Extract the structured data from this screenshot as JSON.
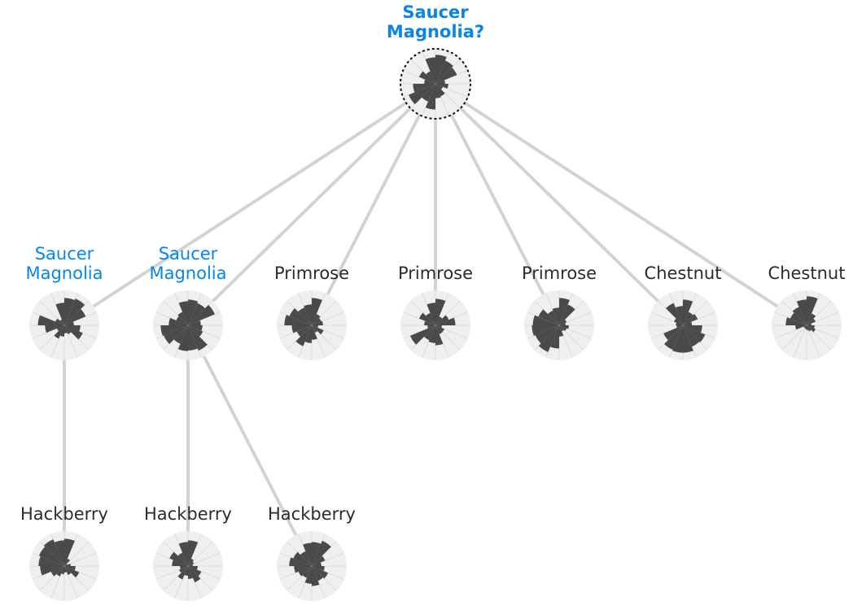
{
  "colors": {
    "edge": "#d3d3d3",
    "disc": "#efefef",
    "wedge": "#4a4a4a",
    "spoke": "#dcdcdc",
    "highlight": "#0a84e6",
    "text": "#2b2b2b",
    "ring": "#111111"
  },
  "nodes": [
    {
      "id": "root",
      "label_lines": [
        "Saucer",
        "Magnolia?"
      ],
      "highlight": true,
      "bold": true,
      "ring": true,
      "parent": null,
      "radii": [
        0.9,
        0.78,
        0.72,
        0.3,
        0.4,
        0.25,
        0.42,
        0.45,
        0.8,
        0.6,
        0.9,
        0.7,
        0.35,
        0.55,
        0.42,
        0.82
      ]
    },
    {
      "id": "n1",
      "label_lines": [
        "Saucer",
        "Magnolia"
      ],
      "highlight": true,
      "bold": false,
      "ring": false,
      "parent": "root",
      "radii": [
        0.85,
        0.9,
        0.72,
        0.3,
        0.5,
        0.62,
        0.3,
        0.25,
        0.35,
        0.45,
        0.25,
        0.6,
        0.82,
        0.3,
        0.2,
        0.7
      ]
    },
    {
      "id": "n2",
      "label_lines": [
        "Saucer",
        "Magnolia"
      ],
      "highlight": true,
      "bold": false,
      "ring": false,
      "parent": "root",
      "radii": [
        0.8,
        0.75,
        0.9,
        0.4,
        0.45,
        0.5,
        0.85,
        0.78,
        0.8,
        0.62,
        0.82,
        0.85,
        0.6,
        0.4,
        0.45,
        0.75
      ]
    },
    {
      "id": "n3",
      "label_lines": [
        "Primrose"
      ],
      "highlight": false,
      "bold": false,
      "ring": false,
      "parent": "root",
      "radii": [
        0.85,
        0.38,
        0.32,
        0.35,
        0.2,
        0.4,
        0.25,
        0.45,
        0.55,
        0.7,
        0.5,
        0.62,
        0.85,
        0.75,
        0.6,
        0.65
      ]
    },
    {
      "id": "n4",
      "label_lines": [
        "Primrose"
      ],
      "highlight": false,
      "bold": false,
      "ring": false,
      "parent": "root",
      "radii": [
        0.82,
        0.3,
        0.45,
        0.62,
        0.2,
        0.3,
        0.3,
        0.62,
        0.55,
        0.5,
        0.85,
        0.25,
        0.35,
        0.55,
        0.42,
        0.7
      ]
    },
    {
      "id": "n5",
      "label_lines": [
        "Primrose"
      ],
      "highlight": false,
      "bold": false,
      "ring": false,
      "parent": "root",
      "radii": [
        0.85,
        0.7,
        0.25,
        0.2,
        0.3,
        0.25,
        0.2,
        0.35,
        0.72,
        0.9,
        0.8,
        0.85,
        0.82,
        0.7,
        0.5,
        0.55
      ]
    },
    {
      "id": "n6",
      "label_lines": [
        "Chestnut"
      ],
      "highlight": false,
      "bold": false,
      "ring": false,
      "parent": "root",
      "radii": [
        0.8,
        0.45,
        0.5,
        0.28,
        0.6,
        0.75,
        0.72,
        0.85,
        0.85,
        0.82,
        0.65,
        0.2,
        0.22,
        0.3,
        0.75,
        0.6
      ]
    },
    {
      "id": "n7",
      "label_lines": [
        "Chestnut"
      ],
      "highlight": false,
      "bold": false,
      "ring": false,
      "parent": "root",
      "radii": [
        0.9,
        0.4,
        0.3,
        0.15,
        0.25,
        0.3,
        0.2,
        0.15,
        0.12,
        0.1,
        0.1,
        0.35,
        0.65,
        0.55,
        0.62,
        0.8
      ]
    },
    {
      "id": "n8",
      "label_lines": [
        "Hackberry"
      ],
      "highlight": false,
      "bold": false,
      "ring": false,
      "parent": "n1",
      "radii": [
        0.85,
        0.25,
        0.1,
        0.2,
        0.35,
        0.5,
        0.3,
        0.2,
        0.25,
        0.35,
        0.45,
        0.75,
        0.8,
        0.85,
        0.9,
        0.8
      ]
    },
    {
      "id": "n9",
      "label_lines": [
        "Hackberry"
      ],
      "highlight": false,
      "bold": false,
      "ring": false,
      "parent": "n2",
      "radii": [
        0.8,
        0.25,
        0.2,
        0.15,
        0.3,
        0.45,
        0.55,
        0.4,
        0.3,
        0.45,
        0.3,
        0.25,
        0.5,
        0.62,
        0.45,
        0.75
      ]
    },
    {
      "id": "n10",
      "label_lines": [
        "Hackberry"
      ],
      "highlight": false,
      "bold": false,
      "ring": false,
      "parent": "n2",
      "radii": [
        0.75,
        0.85,
        0.45,
        0.3,
        0.4,
        0.55,
        0.5,
        0.62,
        0.55,
        0.4,
        0.45,
        0.55,
        0.7,
        0.62,
        0.5,
        0.72
      ]
    }
  ]
}
